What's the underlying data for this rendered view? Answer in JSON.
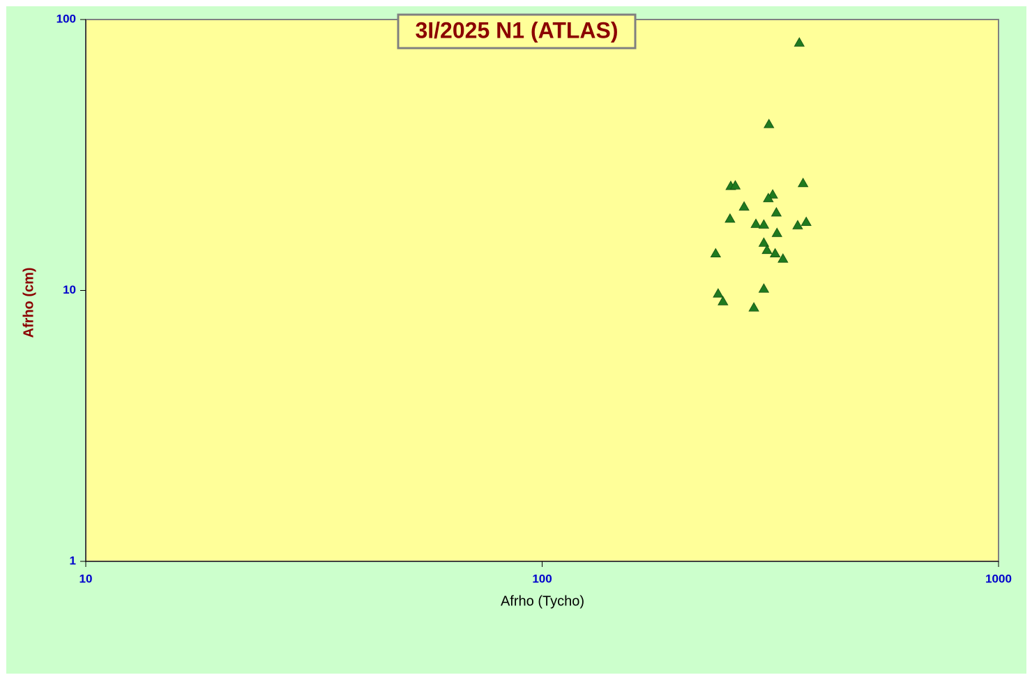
{
  "chart_data": {
    "type": "scatter",
    "title": "3I/2025 N1 (ATLAS)",
    "x_label": "Afrho (Tycho)",
    "y_label": "Afrho (cm)",
    "xscale": "log",
    "yscale": "log",
    "xlim": [
      10,
      1000
    ],
    "ylim": [
      1,
      100
    ],
    "xticks": [
      10,
      100,
      1000
    ],
    "yticks": [
      1,
      10,
      100
    ],
    "marker": "triangle",
    "color": "#1f7a1f",
    "x": [
      366,
      314,
      259,
      265,
      373,
      320,
      313,
      277,
      326,
      258,
      379,
      294,
      306,
      363,
      327,
      306,
      311,
      240,
      324,
      337,
      306,
      243,
      249,
      291
    ],
    "values": [
      82.2,
      41.1,
      24.3,
      24.4,
      24.9,
      22.6,
      21.9,
      20.4,
      19.4,
      18.4,
      17.9,
      17.6,
      17.5,
      17.4,
      16.3,
      15.0,
      14.1,
      13.7,
      13.7,
      13.1,
      10.15,
      9.74,
      9.12,
      8.65
    ]
  }
}
